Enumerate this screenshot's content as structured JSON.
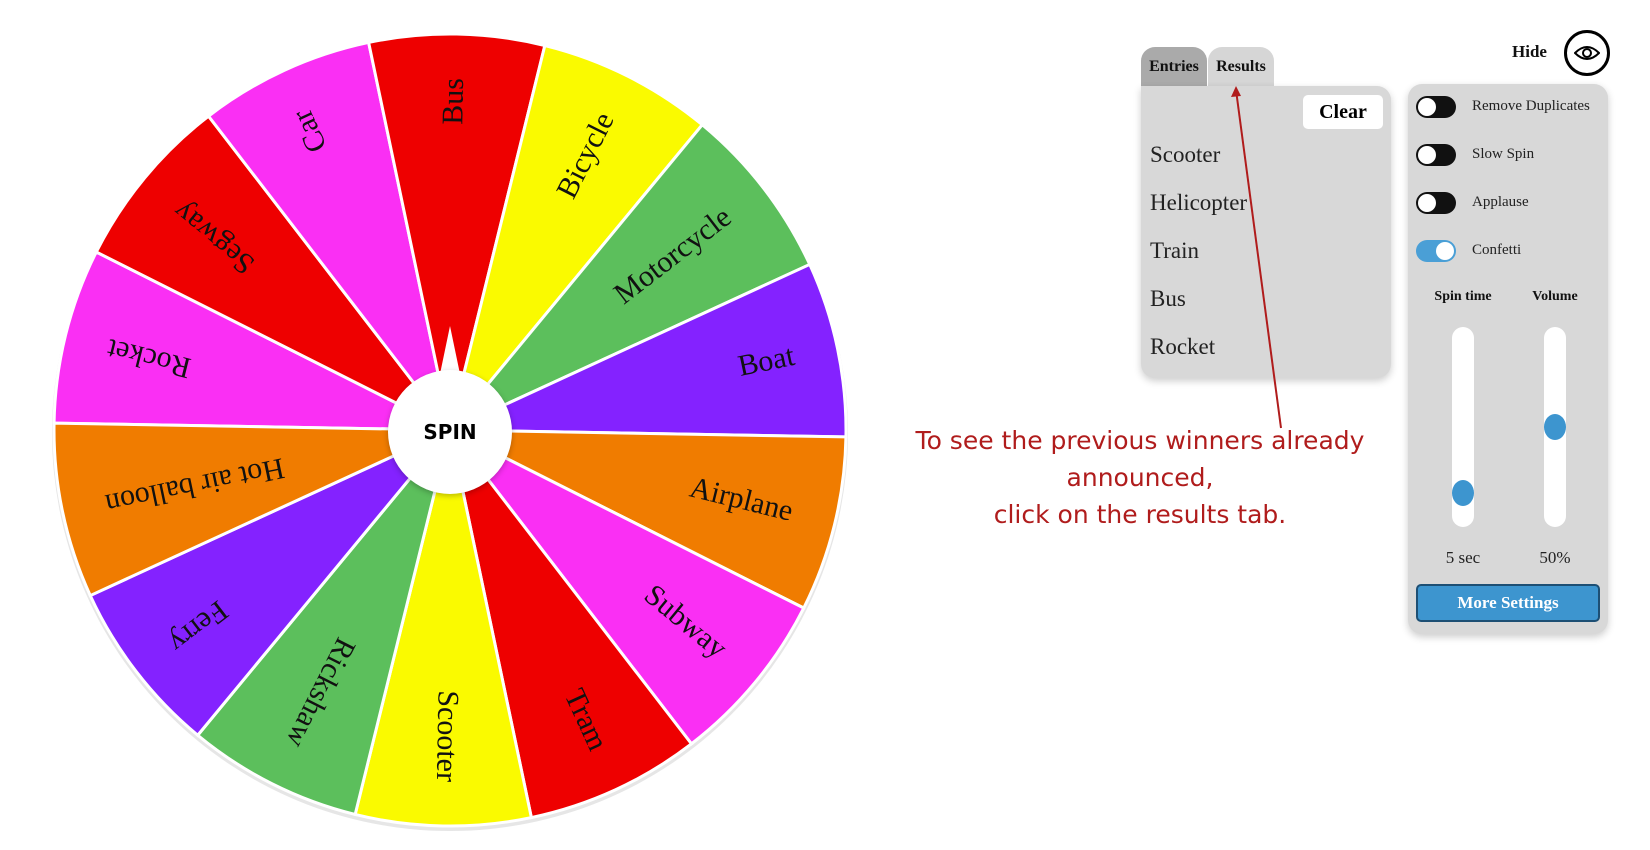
{
  "wheel": {
    "spin_label": "SPIN",
    "segments": [
      {
        "label": "Rocket",
        "color": "#fa2ff4"
      },
      {
        "label": "Segway",
        "color": "#ee0000"
      },
      {
        "label": "Car",
        "color": "#fa2ff4"
      },
      {
        "label": "Bus",
        "color": "#ee0000"
      },
      {
        "label": "Bicycle",
        "color": "#fafa00"
      },
      {
        "label": "Motorcycle",
        "color": "#5cbf5c"
      },
      {
        "label": "Boat",
        "color": "#8422ff"
      },
      {
        "label": "Airplane",
        "color": "#f07c00"
      },
      {
        "label": "Subway",
        "color": "#fa2ff4"
      },
      {
        "label": "Tram",
        "color": "#ee0000"
      },
      {
        "label": "Scooter",
        "color": "#fafa00"
      },
      {
        "label": "Rickshaw",
        "color": "#5cbf5c"
      },
      {
        "label": "Ferry",
        "color": "#8422ff"
      },
      {
        "label": "Hot air balloon",
        "color": "#f07c00"
      }
    ]
  },
  "tabs": {
    "entries": "Entries",
    "results": "Results",
    "active": "results"
  },
  "results": {
    "clear_label": "Clear",
    "items": [
      "Scooter",
      "Helicopter",
      "Train",
      "Bus",
      "Rocket"
    ]
  },
  "settings": {
    "hide_label": "Hide",
    "eye_icon": "eye-icon",
    "toggles": [
      {
        "label": "Remove Duplicates",
        "on": false
      },
      {
        "label": "Slow Spin",
        "on": false
      },
      {
        "label": "Applause",
        "on": false
      },
      {
        "label": "Confetti",
        "on": true
      }
    ],
    "spin_time": {
      "label": "Spin time",
      "value_text": "5 sec",
      "level": 0.12
    },
    "volume": {
      "label": "Volume",
      "value_text": "50%",
      "level": 0.5
    },
    "more_label": "More Settings",
    "accent_color": "#3d95cf"
  },
  "annotation": {
    "line1": "To see the previous winners already announced,",
    "line2": "click on the results tab.",
    "color": "#b01c1c"
  }
}
